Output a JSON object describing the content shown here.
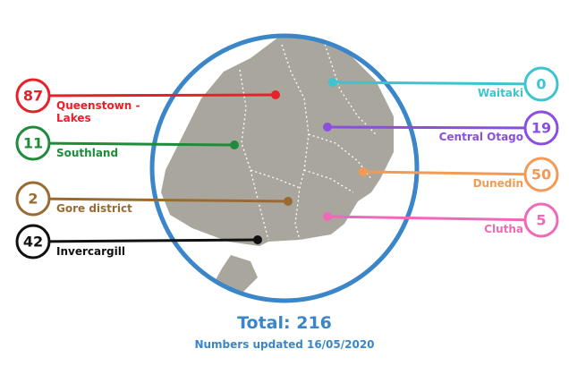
{
  "regions": [
    {
      "name": "Queenstown -Lakes",
      "value": 87,
      "color": "#e8202a"
    },
    {
      "name": "Southland",
      "value": 11,
      "color": "#1e8c3a"
    },
    {
      "name": "Gore district",
      "value": 2,
      "color": "#9a6b30"
    },
    {
      "name": "Invercargill",
      "value": 42,
      "color": "#111111"
    },
    {
      "name": "Waitaki",
      "value": 0,
      "color": "#3cc4cf"
    },
    {
      "name": "Central Otago",
      "value": 19,
      "color": "#8a4fe0"
    },
    {
      "name": "Dunedin",
      "value": 50,
      "color": "#f39a57"
    },
    {
      "name": "Clutha",
      "value": 5,
      "color": "#ee6ab8"
    }
  ],
  "total": {
    "label": "Total:",
    "value": 216
  },
  "updated": "Numbers updated 16/05/2020"
}
